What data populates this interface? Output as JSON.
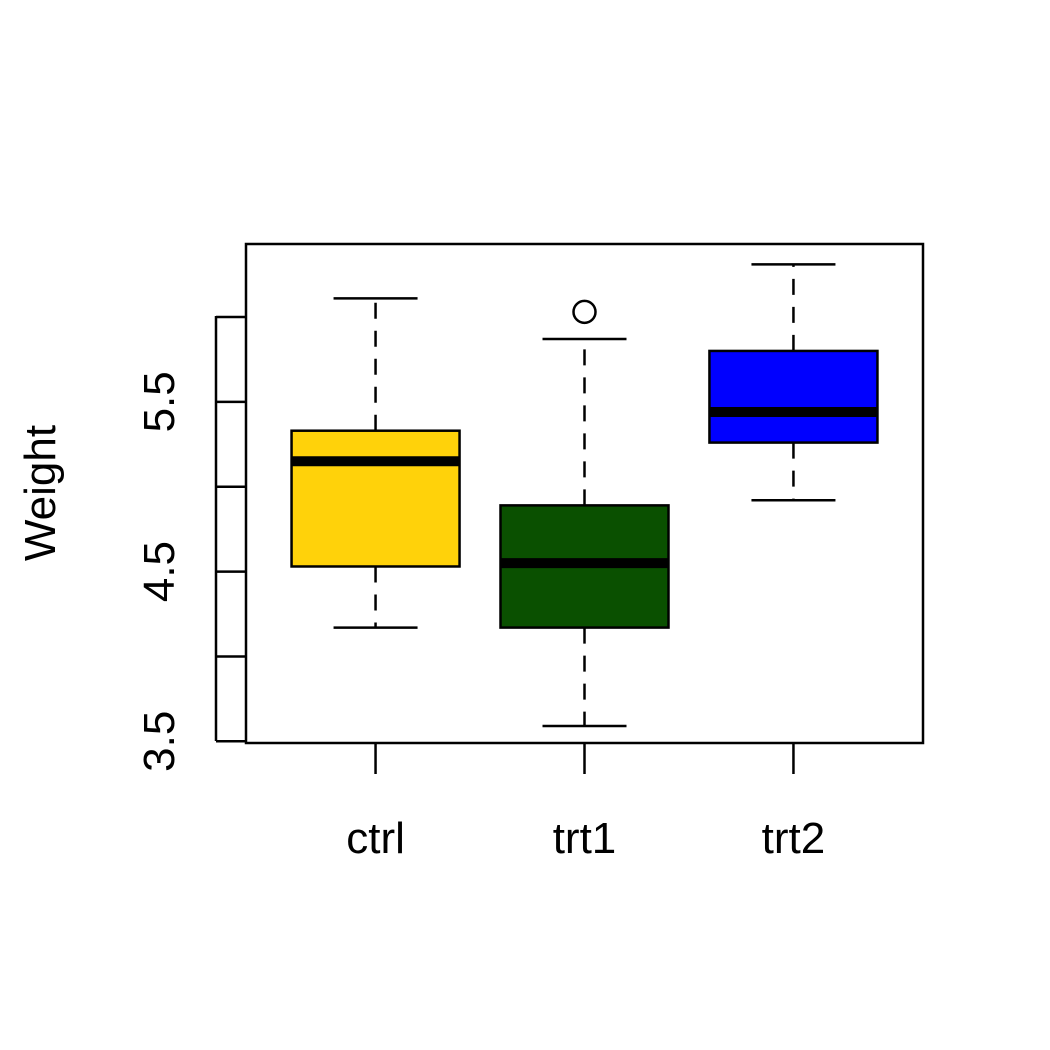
{
  "chart_data": {
    "type": "box",
    "title": "",
    "xlabel": "",
    "ylabel": "Weight",
    "categories": [
      "ctrl",
      "trt1",
      "trt2"
    ],
    "ylim": [
      3.49,
      6.43
    ],
    "yticks": [
      3.5,
      4.0,
      4.5,
      5.0,
      5.5,
      6.0
    ],
    "ytick_labels": [
      "3.5",
      "",
      "4.5",
      "",
      "5.5",
      ""
    ],
    "grid": false,
    "legend": "none",
    "boxes": [
      {
        "category": "ctrl",
        "color": "#FFD20A",
        "whisker_low": 4.17,
        "q1": 4.53,
        "median": 5.15,
        "q3": 5.33,
        "whisker_high": 6.11,
        "outliers": []
      },
      {
        "category": "trt1",
        "color": "#0A5000",
        "whisker_low": 3.59,
        "q1": 4.17,
        "median": 4.55,
        "q3": 4.89,
        "whisker_high": 5.87,
        "outliers": [
          6.03
        ]
      },
      {
        "category": "trt2",
        "color": "#0000FF",
        "whisker_low": 4.92,
        "q1": 5.26,
        "median": 5.44,
        "q3": 5.8,
        "whisker_high": 6.31,
        "outliers": []
      }
    ]
  }
}
